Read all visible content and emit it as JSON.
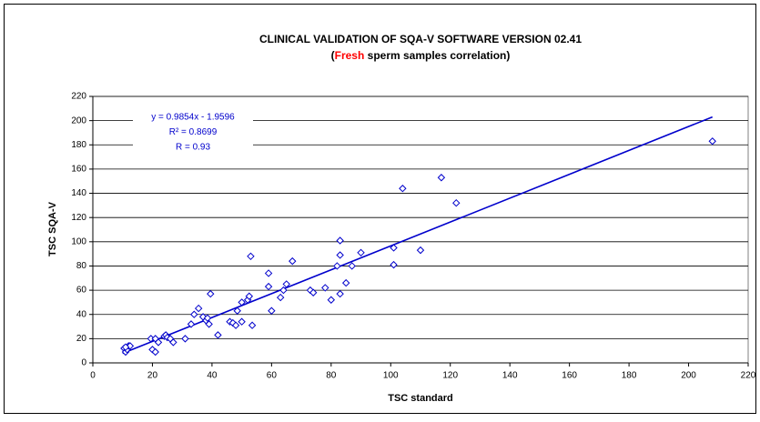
{
  "chart_data": {
    "type": "scatter",
    "title": "CLINICAL VALIDATION OF SQA-V SOFTWARE VERSION 02.41",
    "subtitle": [
      "(",
      "Fresh",
      " sperm samples correlation)"
    ],
    "subtitle_highlight": 1,
    "subtitle_highlight_color": "#ff0000",
    "x_label": "TSC standard",
    "y_label": "TSC SQA-V",
    "annotations": [
      "y = 0.9854x - 1.9596",
      "R² = 0.8699",
      "R = 0.93"
    ],
    "xlim": [
      0,
      220
    ],
    "xticks": [
      0,
      20,
      40,
      60,
      80,
      100,
      120,
      140,
      160,
      180,
      200,
      220
    ],
    "ylim": [
      0,
      220
    ],
    "yticks": [
      0,
      20,
      40,
      60,
      80,
      100,
      120,
      140,
      160,
      180,
      200,
      220
    ],
    "grid": true,
    "series": [
      {
        "color": "#0000cc",
        "x": [
          10.5,
          11,
          11.5,
          12,
          12.5,
          11,
          19.5,
          20,
          21,
          21,
          22,
          24,
          24.5,
          25,
          26,
          27,
          31,
          33,
          34,
          35.5,
          37,
          38,
          38.5,
          39,
          39.5,
          42,
          46,
          47,
          48,
          48.5,
          50,
          50,
          52,
          52.5,
          53,
          53.5,
          59,
          59,
          60,
          63,
          64,
          65,
          67,
          73,
          74,
          78,
          80,
          82,
          83,
          83,
          83,
          85,
          87,
          90,
          101,
          101,
          104,
          110,
          117,
          122,
          208
        ],
        "values": [
          12,
          9,
          11,
          14,
          14,
          13,
          20,
          11,
          9,
          20,
          17,
          22,
          23,
          21,
          20,
          17,
          20,
          32,
          40,
          45,
          38,
          35,
          37,
          32,
          57,
          23,
          34,
          33,
          31,
          43,
          34,
          50,
          52,
          55,
          88,
          31,
          74,
          63,
          43,
          54,
          60,
          65,
          84,
          60,
          58,
          62,
          52,
          80,
          89,
          101,
          57,
          66,
          80,
          91,
          95,
          81,
          144,
          93,
          153,
          132,
          183
        ]
      }
    ],
    "trendline": {
      "slope": 0.9854,
      "intercept": -1.9596,
      "x": [
        10,
        208
      ],
      "color": "#0000cc"
    }
  }
}
